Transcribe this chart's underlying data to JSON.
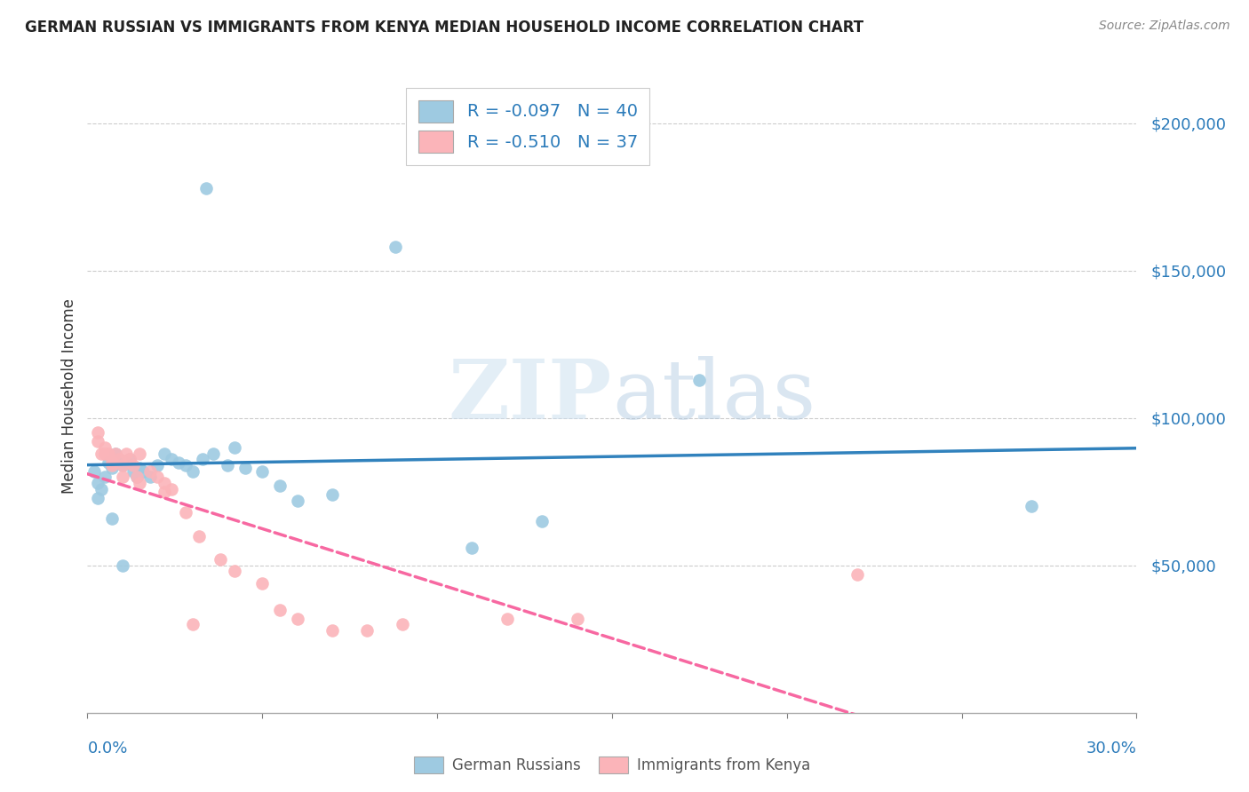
{
  "title": "GERMAN RUSSIAN VS IMMIGRANTS FROM KENYA MEDIAN HOUSEHOLD INCOME CORRELATION CHART",
  "source": "Source: ZipAtlas.com",
  "ylabel": "Median Household Income",
  "yticks": [
    0,
    50000,
    100000,
    150000,
    200000
  ],
  "ytick_labels": [
    "",
    "$50,000",
    "$100,000",
    "$150,000",
    "$200,000"
  ],
  "xlim": [
    0.0,
    0.3
  ],
  "ylim": [
    0,
    215000
  ],
  "legend1_R": "-0.097",
  "legend1_N": "40",
  "legend2_R": "-0.510",
  "legend2_N": "37",
  "blue_color": "#9ecae1",
  "pink_color": "#fbb4b9",
  "blue_line_color": "#3182bd",
  "pink_line_color": "#f768a1",
  "watermark_zip": "ZIP",
  "watermark_atlas": "atlas",
  "blue_scatter_x": [
    0.034,
    0.088,
    0.002,
    0.003,
    0.004,
    0.005,
    0.006,
    0.007,
    0.008,
    0.009,
    0.01,
    0.011,
    0.012,
    0.013,
    0.014,
    0.015,
    0.016,
    0.018,
    0.02,
    0.022,
    0.024,
    0.026,
    0.028,
    0.03,
    0.033,
    0.036,
    0.04,
    0.042,
    0.045,
    0.05,
    0.055,
    0.06,
    0.07,
    0.11,
    0.13,
    0.175,
    0.27,
    0.003,
    0.007,
    0.01
  ],
  "blue_scatter_y": [
    178000,
    158000,
    82000,
    78000,
    76000,
    80000,
    85000,
    83000,
    88000,
    86000,
    84000,
    85000,
    86000,
    82000,
    80000,
    83000,
    82000,
    80000,
    84000,
    88000,
    86000,
    85000,
    84000,
    82000,
    86000,
    88000,
    84000,
    90000,
    83000,
    82000,
    77000,
    72000,
    74000,
    56000,
    65000,
    113000,
    70000,
    73000,
    66000,
    50000
  ],
  "pink_scatter_x": [
    0.003,
    0.004,
    0.005,
    0.006,
    0.007,
    0.008,
    0.009,
    0.01,
    0.011,
    0.012,
    0.013,
    0.014,
    0.015,
    0.018,
    0.02,
    0.022,
    0.024,
    0.028,
    0.032,
    0.038,
    0.042,
    0.05,
    0.055,
    0.06,
    0.07,
    0.08,
    0.09,
    0.12,
    0.14,
    0.003,
    0.005,
    0.007,
    0.01,
    0.015,
    0.022,
    0.22,
    0.03
  ],
  "pink_scatter_y": [
    92000,
    88000,
    90000,
    88000,
    85000,
    88000,
    86000,
    84000,
    88000,
    86000,
    84000,
    80000,
    88000,
    82000,
    80000,
    78000,
    76000,
    68000,
    60000,
    52000,
    48000,
    44000,
    35000,
    32000,
    28000,
    28000,
    30000,
    32000,
    32000,
    95000,
    88000,
    84000,
    80000,
    78000,
    75000,
    47000,
    30000
  ]
}
